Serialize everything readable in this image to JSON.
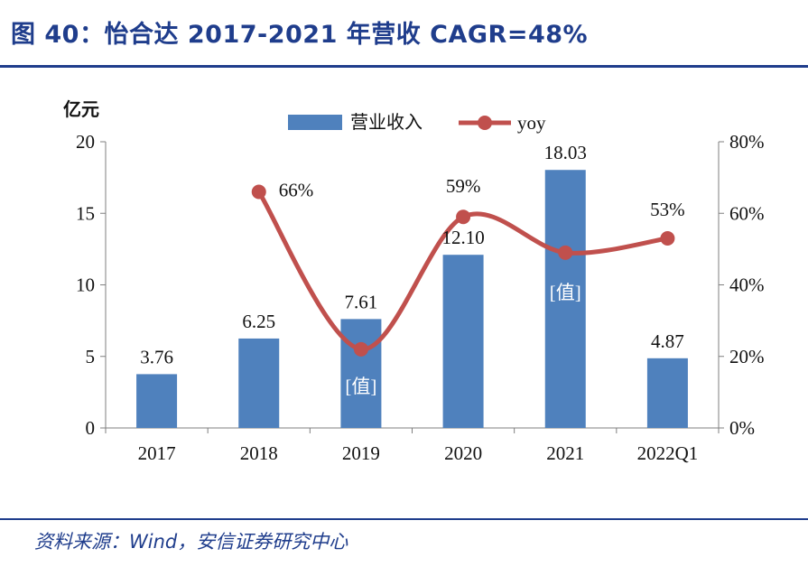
{
  "figure": {
    "title": "图 40：怡合达 2017-2021 年营收 CAGR=48%",
    "source": "资料来源：Wind，安信证券研究中心"
  },
  "chart_data": {
    "type": "bar",
    "categories": [
      "2017",
      "2018",
      "2019",
      "2020",
      "2021",
      "2022Q1"
    ],
    "ylabel": "亿元",
    "ylim": [
      0,
      20
    ],
    "yticks": [
      "0",
      "5",
      "10",
      "15",
      "20"
    ],
    "y2lim": [
      0,
      80
    ],
    "y2ticks": [
      "0%",
      "20%",
      "40%",
      "60%",
      "80%"
    ],
    "grid": false,
    "legend_position": "top",
    "series": [
      {
        "name": "营业收入",
        "type": "bar",
        "axis": "left",
        "color": "#4f81bd",
        "values": [
          3.76,
          6.25,
          7.61,
          12.1,
          18.03,
          4.87
        ],
        "labels": [
          "3.76",
          "6.25",
          "7.61",
          "12.10",
          "18.03",
          "4.87"
        ]
      },
      {
        "name": "yoy",
        "type": "line",
        "axis": "right",
        "color": "#c0504d",
        "values": [
          null,
          66,
          22,
          59,
          49,
          53
        ],
        "labels": [
          "",
          "66%",
          "",
          "59%",
          "",
          "53%"
        ]
      }
    ],
    "annotations": [
      {
        "text": "[值]",
        "category": "2019"
      },
      {
        "text": "[值]",
        "category": "2021"
      }
    ]
  }
}
